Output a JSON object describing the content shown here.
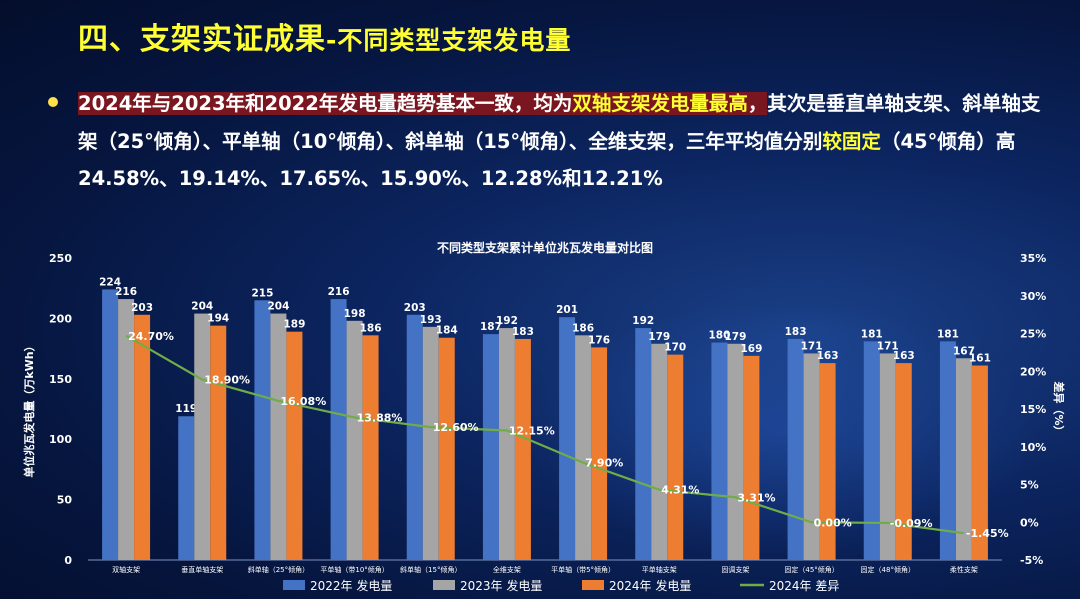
{
  "slide": {
    "title_main": "四、支架实证成果",
    "title_sub": "-不同类型支架发电量",
    "summary": {
      "part1": "2024年与2023年和2022年发电量趋势基本一致，均为",
      "part2": "双轴支架发电量最高",
      "part3": "，",
      "part4": "其次是垂直单轴支架、斜单轴支架（25°倾角）、平单轴（10°倾角）、斜单轴（15°倾角）、全维支架，三年平均值分别",
      "part5": "较固定",
      "part6": "（45°倾角）高24.58%、19.14%、17.65%、15.90%、12.28%和12.21%"
    }
  },
  "colors": {
    "series_2022": "#4472c4",
    "series_2023": "#a5a5a5",
    "series_2024": "#ed7d31",
    "diff_line": "#70ad47",
    "title": "#ffff33"
  },
  "chart_data": {
    "type": "bar",
    "title": "不同类型支架累计单位兆瓦发电量对比图",
    "ylabel": "单位兆瓦发电量（万kWh）",
    "y2label": "差异（%）",
    "ylim": [
      0,
      250
    ],
    "yticks": [
      "0",
      "50",
      "100",
      "150",
      "200",
      "250"
    ],
    "y2lim": [
      -5,
      35
    ],
    "y2ticks": [
      "-5%",
      "0%",
      "5%",
      "10%",
      "15%",
      "20%",
      "25%",
      "30%",
      "35%"
    ],
    "categories": [
      "双轴支架",
      "垂直单轴支架",
      "斜单轴（25°倾角）",
      "平单轴（带10°倾角）",
      "斜单轴（15°倾角）",
      "全维支架",
      "平单轴（带5°倾角）",
      "平单轴支架",
      "固调支架",
      "固定（45°倾角）",
      "固定（48°倾角）",
      "柔性支架"
    ],
    "series": [
      {
        "name": "2022年 发电量",
        "values": [
          224,
          119,
          215,
          216,
          203,
          187,
          201,
          192,
          180,
          183,
          181,
          181
        ]
      },
      {
        "name": "2023年 发电量",
        "values": [
          216,
          204,
          204,
          198,
          193,
          192,
          186,
          179,
          179,
          171,
          171,
          167
        ]
      },
      {
        "name": "2024年 发电量",
        "values": [
          203,
          194,
          189,
          186,
          184,
          183,
          176,
          170,
          169,
          163,
          163,
          161
        ]
      }
    ],
    "line_series": {
      "name": "2024年 差异",
      "values": [
        24.7,
        18.9,
        16.08,
        13.88,
        12.6,
        12.15,
        7.9,
        4.31,
        3.31,
        0.0,
        -0.09,
        -1.45
      ],
      "labels": [
        "24.70%",
        "18.90%",
        "16.08%",
        "13.88%",
        "12.60%",
        "12.15%",
        "7.90%",
        "4.31%",
        "3.31%",
        "0.00%",
        "-0.09%",
        "-1.45%"
      ]
    },
    "legend": "bottom"
  }
}
